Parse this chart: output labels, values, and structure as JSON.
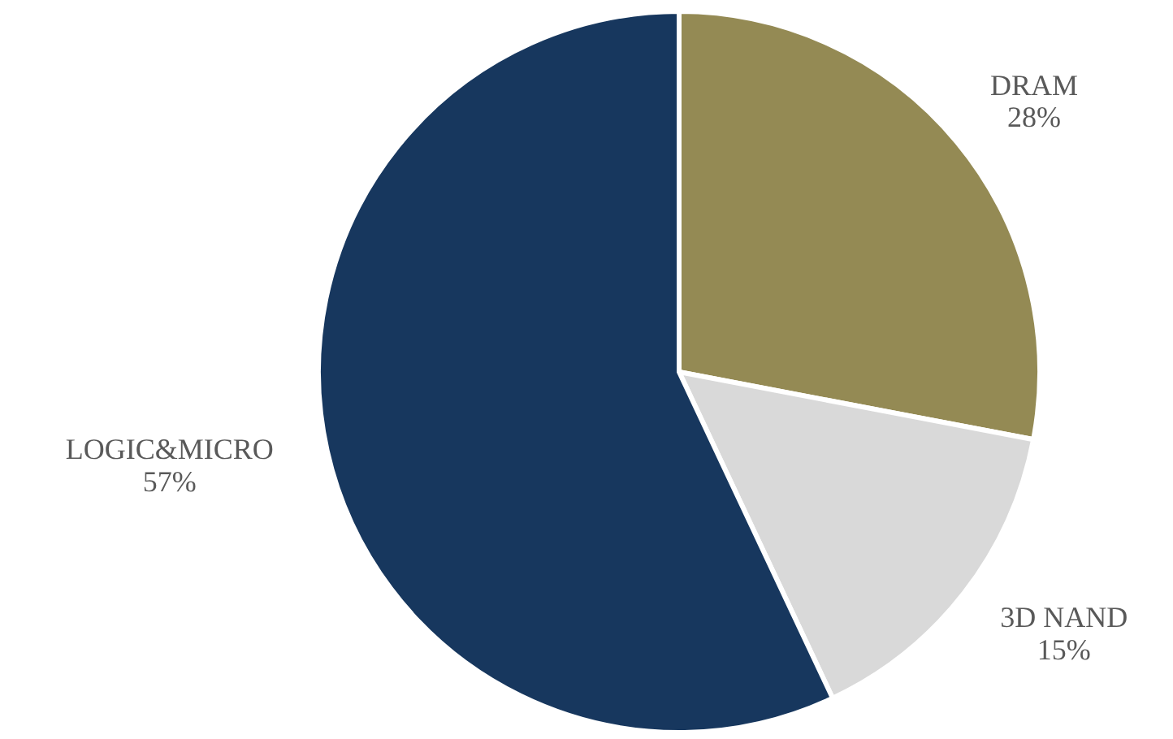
{
  "chart_data": {
    "type": "pie",
    "categories": [
      "DRAM",
      "3D NAND",
      "LOGIC&MICRO"
    ],
    "values": [
      28,
      15,
      57
    ],
    "colors": [
      "#948a54",
      "#d9d9d9",
      "#17375e"
    ],
    "value_labels": [
      "28%",
      "15%",
      "57%"
    ]
  }
}
